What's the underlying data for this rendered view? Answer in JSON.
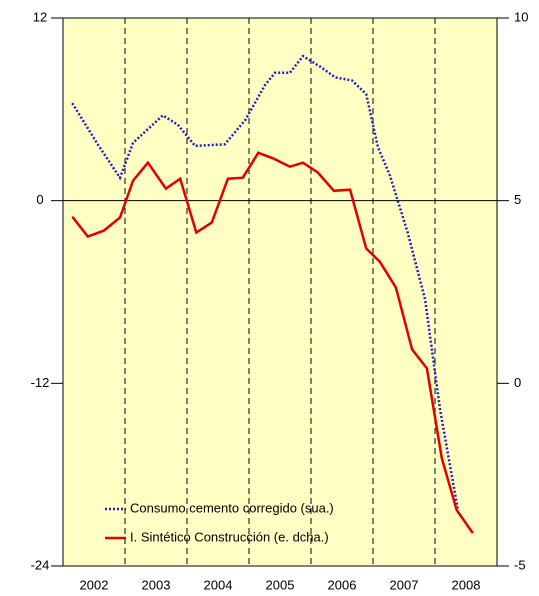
{
  "chart_data": {
    "type": "line",
    "xlim": [
      2002,
      2009
    ],
    "xticks": [
      {
        "value": 2002.5,
        "label": "2002"
      },
      {
        "value": 2003.5,
        "label": "2003"
      },
      {
        "value": 2004.5,
        "label": "2004"
      },
      {
        "value": 2005.5,
        "label": "2005"
      },
      {
        "value": 2006.5,
        "label": "2006"
      },
      {
        "value": 2007.5,
        "label": "2007"
      },
      {
        "value": 2008.5,
        "label": "2008"
      }
    ],
    "xgrid": [
      2003,
      2004,
      2005,
      2006,
      2007,
      2008
    ],
    "ylim": [
      -24,
      12
    ],
    "yticks": [
      -24,
      -12,
      0,
      12
    ],
    "y2lim": [
      -5,
      10
    ],
    "y2ticks": [
      -5,
      0,
      5,
      10
    ],
    "legend": "lower center",
    "series": [
      {
        "name": "Consumo cemento corregido (sua.)",
        "color": "#1f1fbf",
        "style": "dotted",
        "x": [
          2002.15,
          2002.56,
          2002.92,
          2003.13,
          2003.61,
          2003.85,
          2004.13,
          2004.61,
          2004.94,
          2005.26,
          2005.42,
          2005.66,
          2005.87,
          2006.15,
          2006.39,
          2006.66,
          2006.89,
          2007.08,
          2007.27,
          2007.56,
          2007.84,
          2008.08,
          2008.37
        ],
        "values": [
          6.4,
          3.7,
          1.5,
          3.8,
          5.6,
          5.0,
          3.6,
          3.7,
          5.3,
          7.6,
          8.4,
          8.4,
          9.5,
          8.8,
          8.1,
          7.9,
          7.0,
          3.5,
          1.7,
          -2.1,
          -6.5,
          -13.7,
          -20.3
        ]
      },
      {
        "name": "I. Sintético Construcción (e. dcha.)",
        "color": "#e00000",
        "style": "solid",
        "axis": "y2",
        "x": [
          2002.15,
          2002.4,
          2002.66,
          2002.92,
          2003.13,
          2003.37,
          2003.66,
          2003.89,
          2004.15,
          2004.4,
          2004.66,
          2004.9,
          2005.15,
          2005.4,
          2005.66,
          2005.87,
          2006.11,
          2006.37,
          2006.63,
          2006.89,
          2007.11,
          2007.37,
          2007.63,
          2007.87,
          2008.11,
          2008.35,
          2008.61
        ],
        "values": [
          4.56,
          4.02,
          4.18,
          4.54,
          5.55,
          6.04,
          5.33,
          5.6,
          4.13,
          4.4,
          5.6,
          5.63,
          6.31,
          6.15,
          5.93,
          6.04,
          5.77,
          5.27,
          5.3,
          3.69,
          3.33,
          2.62,
          0.93,
          0.41,
          -2.05,
          -3.47,
          -4.1
        ]
      }
    ]
  }
}
